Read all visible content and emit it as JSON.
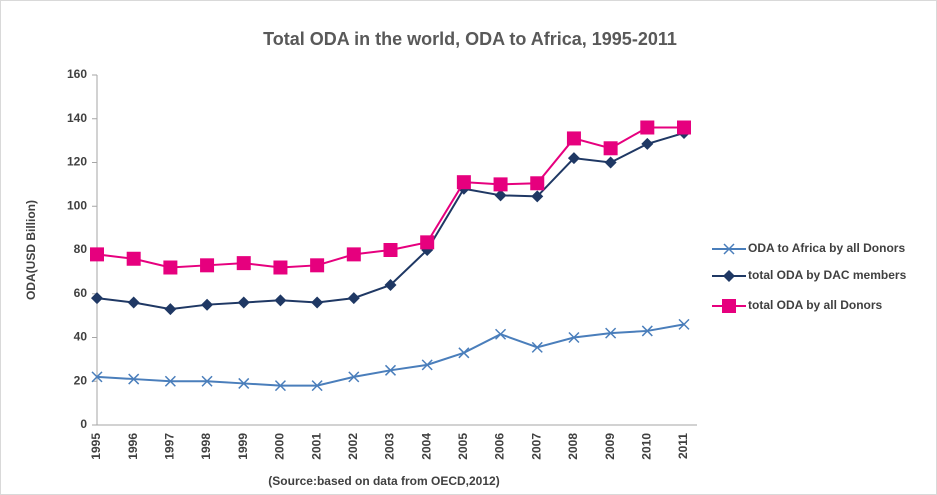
{
  "chart_data": {
    "type": "line",
    "title": "Total ODA in the world, ODA to Africa, 1995-2011",
    "y_label": "ODA(USD Billion)",
    "source": "(Source:based on data from OECD,2012)",
    "categories": [
      "1995",
      "1996",
      "1997",
      "1998",
      "1999",
      "2000",
      "2001",
      "2002",
      "2003",
      "2004",
      "2005",
      "2006",
      "2007",
      "2008",
      "2009",
      "2010",
      "2011"
    ],
    "series": [
      {
        "name": "ODA to Africa by all Donors",
        "color": "#4a7ebb",
        "marker": "x",
        "values": [
          22,
          21,
          20,
          20,
          19,
          18,
          18,
          22,
          25,
          27.5,
          33,
          41.5,
          35.5,
          40,
          42,
          43,
          46
        ]
      },
      {
        "name": "total ODA by DAC members",
        "color": "#1f3864",
        "marker": "diamond",
        "values": [
          58,
          56,
          53,
          55,
          56,
          57,
          56,
          58,
          64,
          80,
          108,
          105,
          104.5,
          122,
          120,
          128.5,
          133.5
        ]
      },
      {
        "name": "total ODA by all Donors",
        "color": "#e6007e",
        "marker": "square",
        "values": [
          78,
          76,
          72,
          73,
          74,
          72,
          73,
          78,
          80,
          83.5,
          111,
          110,
          110.5,
          131,
          126.5,
          136,
          136
        ]
      }
    ],
    "ylim": [
      0,
      160
    ],
    "yticks": [
      0,
      20,
      40,
      60,
      80,
      100,
      120,
      140,
      160
    ],
    "grid": false,
    "legend": "right"
  }
}
